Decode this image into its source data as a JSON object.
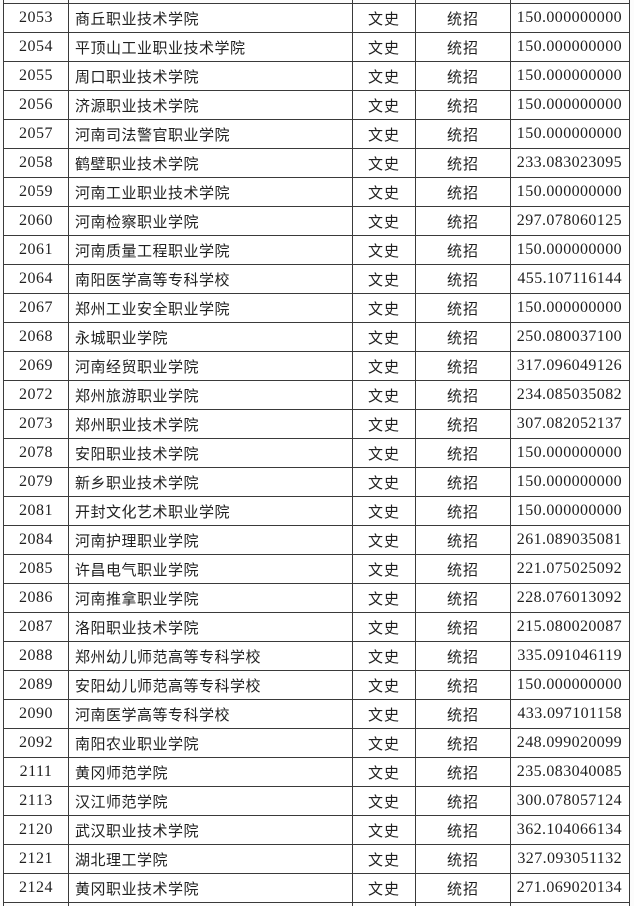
{
  "page": {
    "background_color": "#fcfcfc",
    "border_color": "#3a3a3a",
    "text_color": "#1f1f1f"
  },
  "table": {
    "columns": [
      {
        "key": "code",
        "semantic": "school-code",
        "align": "center"
      },
      {
        "key": "name",
        "semantic": "school-name",
        "align": "left"
      },
      {
        "key": "category",
        "semantic": "subject-category",
        "align": "center"
      },
      {
        "key": "type",
        "semantic": "admission-type",
        "align": "center"
      },
      {
        "key": "score",
        "semantic": "score",
        "align": "right"
      }
    ],
    "rows": [
      {
        "code": "2053",
        "name": "商丘职业技术学院",
        "category": "文史",
        "type": "统招",
        "score": "150.000000000"
      },
      {
        "code": "2054",
        "name": "平顶山工业职业技术学院",
        "category": "文史",
        "type": "统招",
        "score": "150.000000000"
      },
      {
        "code": "2055",
        "name": "周口职业技术学院",
        "category": "文史",
        "type": "统招",
        "score": "150.000000000"
      },
      {
        "code": "2056",
        "name": "济源职业技术学院",
        "category": "文史",
        "type": "统招",
        "score": "150.000000000"
      },
      {
        "code": "2057",
        "name": "河南司法警官职业学院",
        "category": "文史",
        "type": "统招",
        "score": "150.000000000"
      },
      {
        "code": "2058",
        "name": "鹤壁职业技术学院",
        "category": "文史",
        "type": "统招",
        "score": "233.083023095"
      },
      {
        "code": "2059",
        "name": "河南工业职业技术学院",
        "category": "文史",
        "type": "统招",
        "score": "150.000000000"
      },
      {
        "code": "2060",
        "name": "河南检察职业学院",
        "category": "文史",
        "type": "统招",
        "score": "297.078060125"
      },
      {
        "code": "2061",
        "name": "河南质量工程职业学院",
        "category": "文史",
        "type": "统招",
        "score": "150.000000000"
      },
      {
        "code": "2064",
        "name": "南阳医学高等专科学校",
        "category": "文史",
        "type": "统招",
        "score": "455.107116144"
      },
      {
        "code": "2067",
        "name": "郑州工业安全职业学院",
        "category": "文史",
        "type": "统招",
        "score": "150.000000000"
      },
      {
        "code": "2068",
        "name": "永城职业学院",
        "category": "文史",
        "type": "统招",
        "score": "250.080037100"
      },
      {
        "code": "2069",
        "name": "河南经贸职业学院",
        "category": "文史",
        "type": "统招",
        "score": "317.096049126"
      },
      {
        "code": "2072",
        "name": "郑州旅游职业学院",
        "category": "文史",
        "type": "统招",
        "score": "234.085035082"
      },
      {
        "code": "2073",
        "name": "郑州职业技术学院",
        "category": "文史",
        "type": "统招",
        "score": "307.082052137"
      },
      {
        "code": "2078",
        "name": "安阳职业技术学院",
        "category": "文史",
        "type": "统招",
        "score": "150.000000000"
      },
      {
        "code": "2079",
        "name": "新乡职业技术学院",
        "category": "文史",
        "type": "统招",
        "score": "150.000000000"
      },
      {
        "code": "2081",
        "name": "开封文化艺术职业学院",
        "category": "文史",
        "type": "统招",
        "score": "150.000000000"
      },
      {
        "code": "2084",
        "name": "河南护理职业学院",
        "category": "文史",
        "type": "统招",
        "score": "261.089035081"
      },
      {
        "code": "2085",
        "name": "许昌电气职业学院",
        "category": "文史",
        "type": "统招",
        "score": "221.075025092"
      },
      {
        "code": "2086",
        "name": "河南推拿职业学院",
        "category": "文史",
        "type": "统招",
        "score": "228.076013092"
      },
      {
        "code": "2087",
        "name": "洛阳职业技术学院",
        "category": "文史",
        "type": "统招",
        "score": "215.080020087"
      },
      {
        "code": "2088",
        "name": "郑州幼儿师范高等专科学校",
        "category": "文史",
        "type": "统招",
        "score": "335.091046119"
      },
      {
        "code": "2089",
        "name": "安阳幼儿师范高等专科学校",
        "category": "文史",
        "type": "统招",
        "score": "150.000000000"
      },
      {
        "code": "2090",
        "name": "河南医学高等专科学校",
        "category": "文史",
        "type": "统招",
        "score": "433.097101158"
      },
      {
        "code": "2092",
        "name": "南阳农业职业学院",
        "category": "文史",
        "type": "统招",
        "score": "248.099020099"
      },
      {
        "code": "2111",
        "name": "黄冈师范学院",
        "category": "文史",
        "type": "统招",
        "score": "235.083040085"
      },
      {
        "code": "2113",
        "name": "汉江师范学院",
        "category": "文史",
        "type": "统招",
        "score": "300.078057124"
      },
      {
        "code": "2120",
        "name": "武汉职业技术学院",
        "category": "文史",
        "type": "统招",
        "score": "362.104066134"
      },
      {
        "code": "2121",
        "name": "湖北理工学院",
        "category": "文史",
        "type": "统招",
        "score": "327.093051132"
      },
      {
        "code": "2124",
        "name": "黄冈职业技术学院",
        "category": "文史",
        "type": "统招",
        "score": "271.069020134"
      }
    ]
  }
}
